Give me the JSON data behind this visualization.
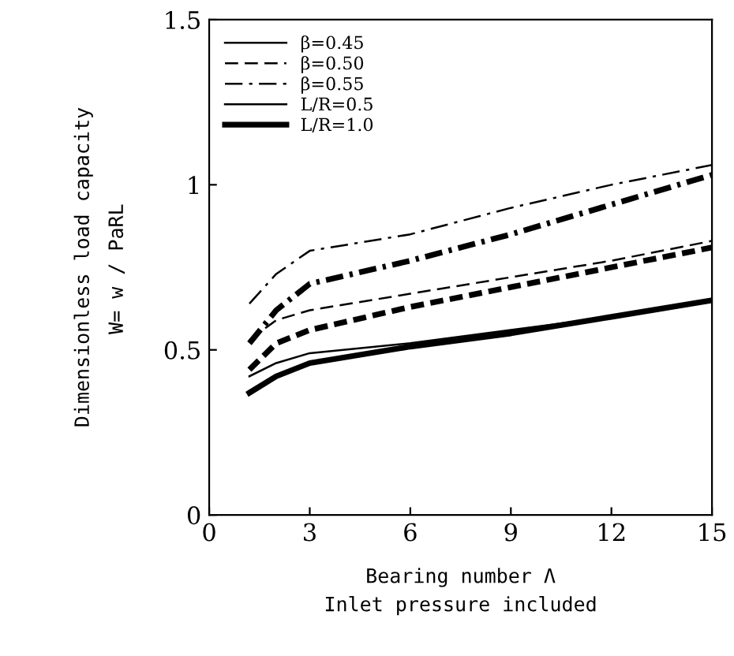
{
  "chart_data": {
    "type": "line",
    "xlabel": "Bearing number Λ\nInlet pressure included",
    "ylabel": "Dimensionless load capacity",
    "annotations": [
      "W= w / PaRL"
    ],
    "xlim": [
      0,
      15
    ],
    "ylim": [
      0,
      1.5
    ],
    "xticks": [
      0,
      3,
      6,
      9,
      12,
      15
    ],
    "yticks": [
      0,
      {
        "value": 0.5,
        "label": "0.5"
      },
      1,
      {
        "value": 1.5,
        "label": "1.5"
      }
    ],
    "grid": false,
    "legend": "top left",
    "x": [
      1.2,
      2,
      3,
      6,
      9,
      12,
      15
    ],
    "series": [
      {
        "name": "β=0.45",
        "color": "#000000",
        "line_style": "solid",
        "values": [
          0.42,
          0.46,
          0.49,
          0.52,
          0.56,
          0.6,
          0.65
        ]
      },
      {
        "name": "β=0.50",
        "color": "#000000",
        "line_style": "dashed",
        "values": [
          0.53,
          0.59,
          0.62,
          0.67,
          0.72,
          0.77,
          0.83
        ]
      },
      {
        "name": "β=0.55",
        "color": "#000000",
        "line_style": "dashdot",
        "values": [
          0.64,
          0.73,
          0.8,
          0.85,
          0.93,
          1.0,
          1.06
        ]
      },
      {
        "name": "L/R=0.5",
        "color": "#000000",
        "line_style": "solid",
        "values": [
          null,
          null,
          null,
          null,
          null,
          null,
          null
        ]
      },
      {
        "name": "L/R=1.0",
        "color": "#000000",
        "line_style": "solid",
        "values": [
          null,
          null,
          null,
          null,
          null,
          null,
          null
        ]
      },
      {
        "color": "#000000",
        "line_style": "solid",
        "values": [
          0.37,
          0.42,
          0.46,
          0.51,
          0.55,
          0.6,
          0.65
        ]
      },
      {
        "color": "#000000",
        "line_style": "dashed",
        "values": [
          0.44,
          0.52,
          0.56,
          0.63,
          0.69,
          0.75,
          0.81
        ]
      },
      {
        "color": "#000000",
        "line_style": "dashdot",
        "values": [
          0.52,
          0.62,
          0.7,
          0.77,
          0.85,
          0.94,
          1.03
        ]
      }
    ]
  }
}
